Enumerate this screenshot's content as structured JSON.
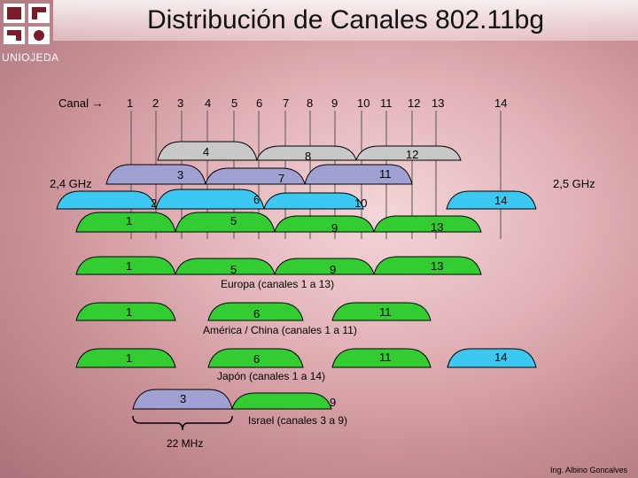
{
  "title": "Distribución de Canales 802.11bg",
  "logo_text": "UNIOJEDA",
  "header": {
    "label": "Canal",
    "arrow": "→",
    "channels": [
      "1",
      "2",
      "3",
      "4",
      "5",
      "6",
      "7",
      "8",
      "9",
      "10",
      "11",
      "12",
      "13",
      "14"
    ]
  },
  "freq_low": "2,4 GHz",
  "freq_high": "2,5 GHz",
  "colors": {
    "ch1_6_11": "#33cc33",
    "ch2_5_10": "#33ccff",
    "ch4_8_12": "#bbbbbb",
    "ch3_7_11": "#9999cc",
    "ch9_13": "#33cc33",
    "ch14": "#33ccff"
  },
  "bands": {
    "row_gray": [
      "4",
      "8",
      "12"
    ],
    "row_purple": [
      "3",
      "7",
      "11"
    ],
    "row_blue": [
      "2",
      "6",
      "10",
      "14"
    ],
    "row_green": [
      "1",
      "5",
      "9",
      "13"
    ]
  },
  "regions": [
    {
      "name": "Europa (canales 1 a 13)",
      "channels": [
        "1",
        "5",
        "9",
        "13"
      ]
    },
    {
      "name": "América / China (canales 1 a 11)",
      "channels": [
        "1",
        "6",
        "11"
      ]
    },
    {
      "name": "Japón (canales 1 a 14)",
      "channels": [
        "1",
        "6",
        "11",
        "14"
      ]
    },
    {
      "name": "Israel (canales 3 a 9)",
      "channels": [
        "3",
        "9"
      ]
    }
  ],
  "bandwidth": "22 MHz",
  "credit": "Ing. Albino Goncalves"
}
